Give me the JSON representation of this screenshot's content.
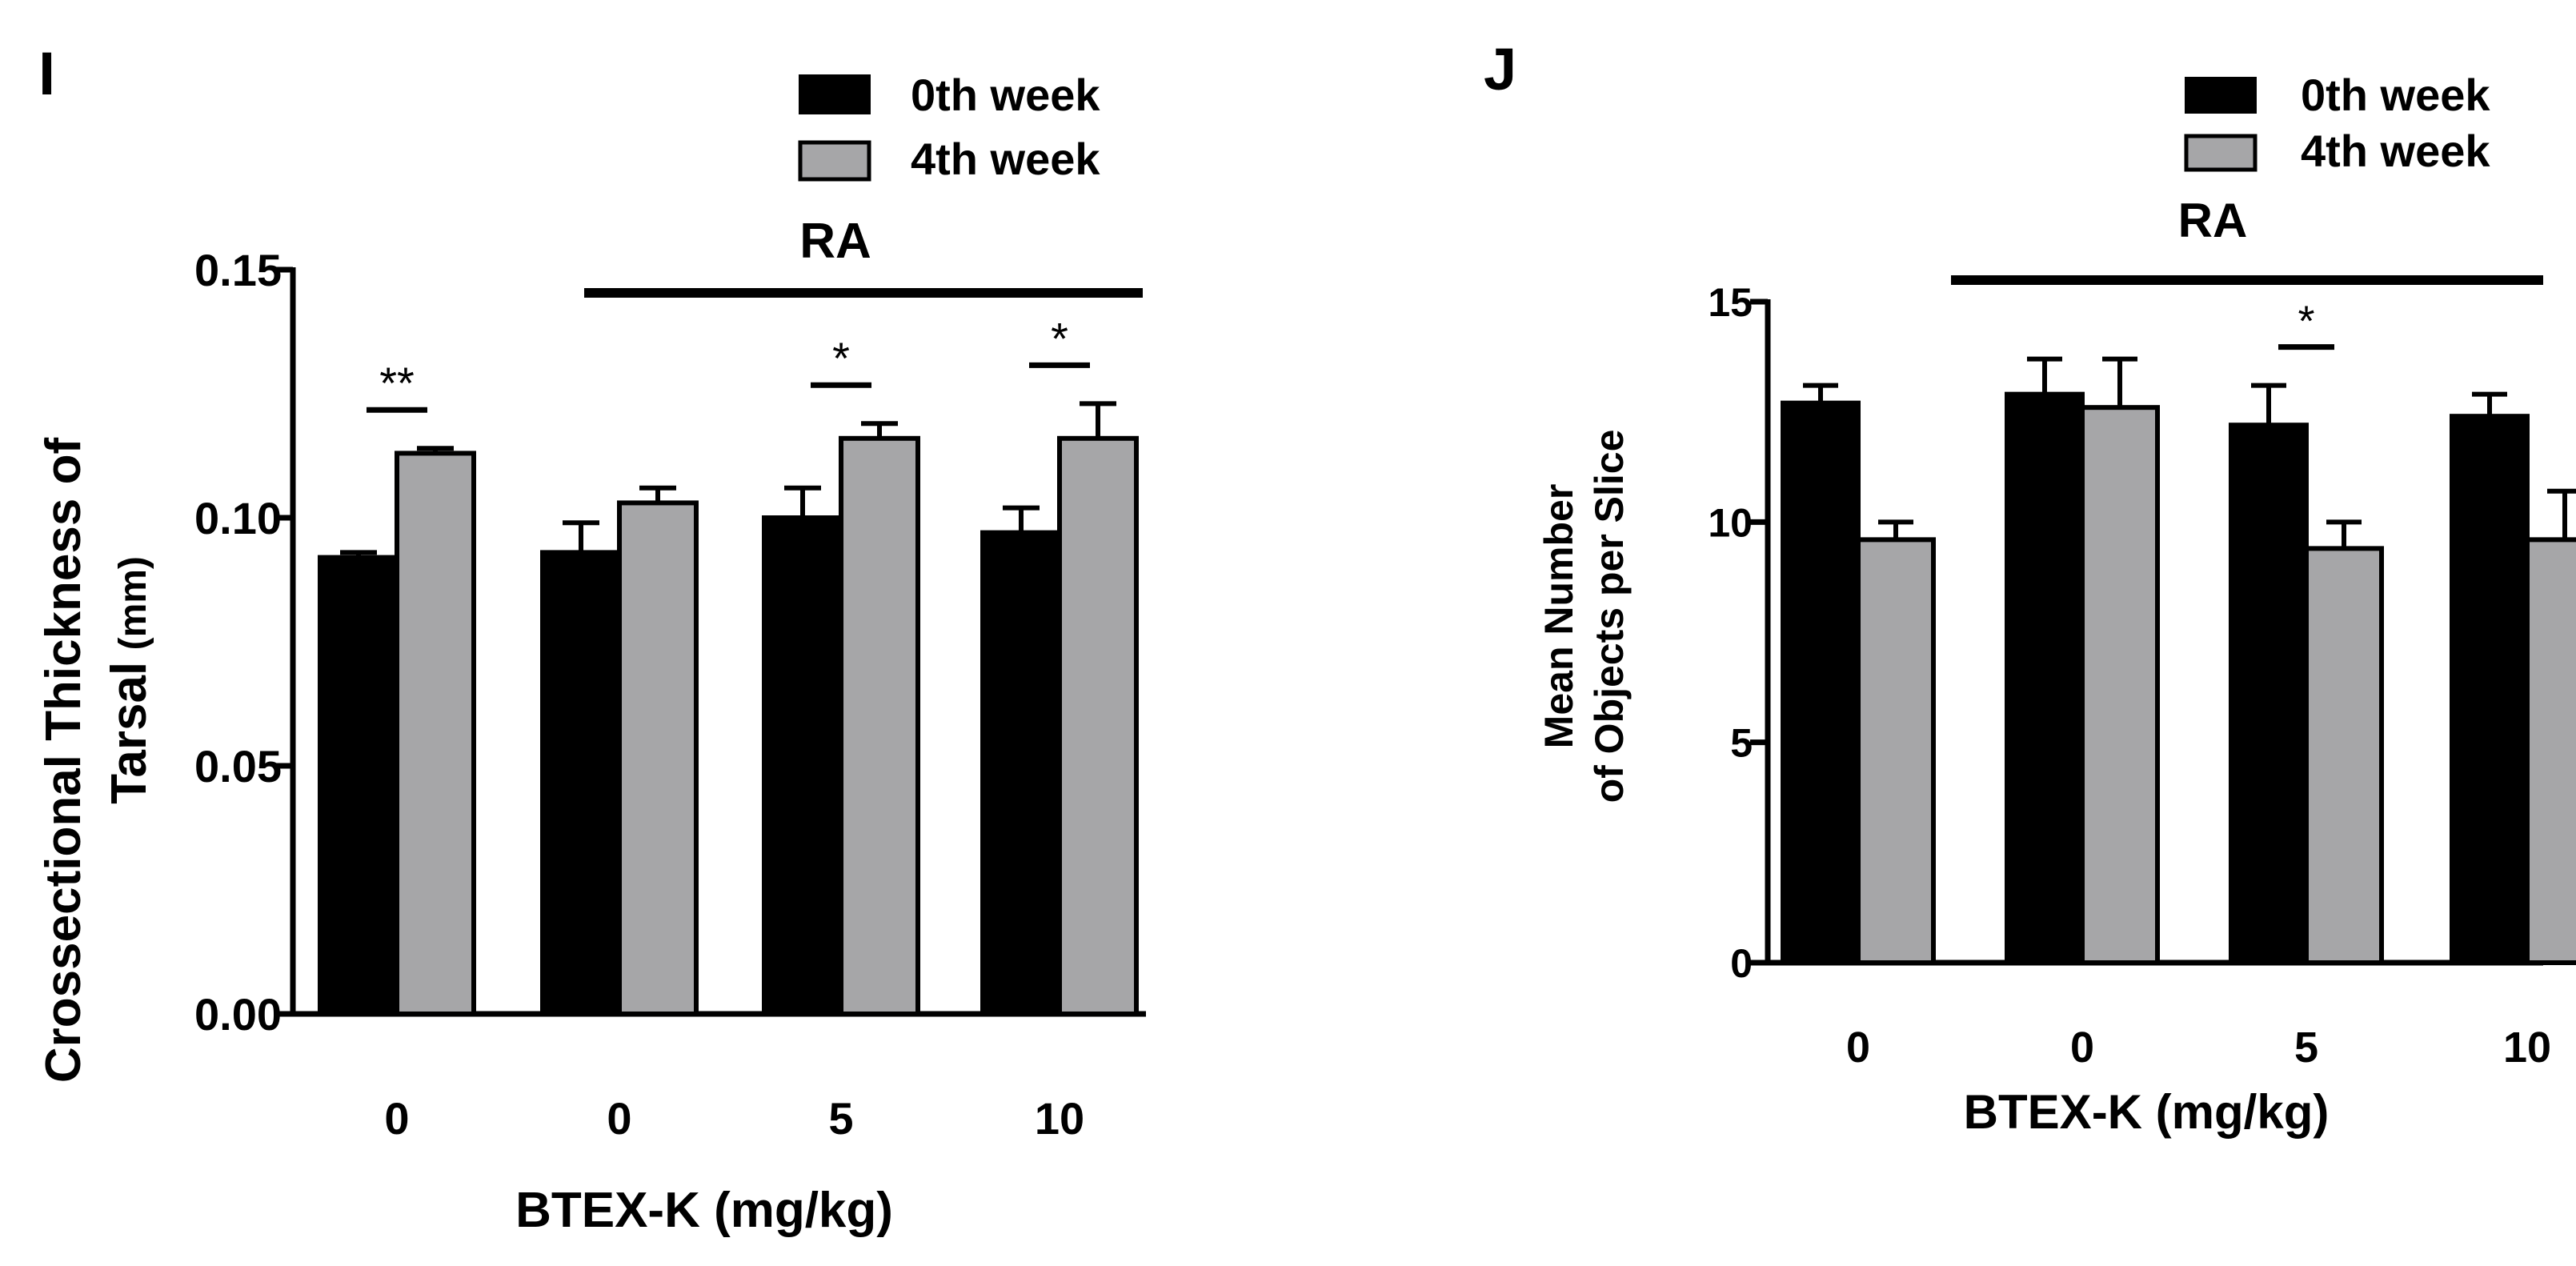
{
  "chart_data": [
    {
      "panel_label": "I",
      "type": "bar",
      "ylabel_main": "Crossectional Thickness of",
      "ylabel_second": "Tarsal",
      "ylabel_unit": "(mm)",
      "xlabel": "BTEX-K (mg/kg)",
      "group_label": "RA",
      "categories": [
        "0",
        "0",
        "5",
        "10"
      ],
      "yticks": [
        "0.00",
        "0.05",
        "0.10",
        "0.15"
      ],
      "ylim": [
        0,
        0.15
      ],
      "series": [
        {
          "name": "0th week",
          "values": [
            0.092,
            0.093,
            0.1,
            0.097
          ],
          "errors": [
            0.001,
            0.006,
            0.006,
            0.005
          ],
          "color": "#000000"
        },
        {
          "name": "4th week",
          "values": [
            0.113,
            0.103,
            0.116,
            0.116
          ],
          "errors": [
            0.001,
            0.003,
            0.003,
            0.007
          ],
          "color": "#a6a6a8"
        }
      ],
      "significance": [
        {
          "category": 0,
          "label": "**"
        },
        {
          "category": 2,
          "label": "*"
        },
        {
          "category": 3,
          "label": "*"
        }
      ]
    },
    {
      "panel_label": "J",
      "type": "bar",
      "ylabel_main": "Mean Number",
      "ylabel_second": "of Objects per Slice",
      "xlabel": "BTEX-K (mg/kg)",
      "group_label": "RA",
      "categories": [
        "0",
        "0",
        "5",
        "10"
      ],
      "yticks": [
        "0",
        "5",
        "10",
        "15"
      ],
      "ylim": [
        0,
        15
      ],
      "series": [
        {
          "name": "0th week",
          "values": [
            12.7,
            12.9,
            12.2,
            12.4
          ],
          "errors": [
            0.4,
            0.8,
            0.9,
            0.5
          ],
          "color": "#000000"
        },
        {
          "name": "4th week",
          "values": [
            9.6,
            12.6,
            9.4,
            9.6
          ],
          "errors": [
            0.4,
            1.1,
            0.6,
            1.1
          ],
          "color": "#a6a6a8"
        }
      ],
      "significance": [
        {
          "category": 2,
          "label": "*"
        }
      ]
    }
  ]
}
